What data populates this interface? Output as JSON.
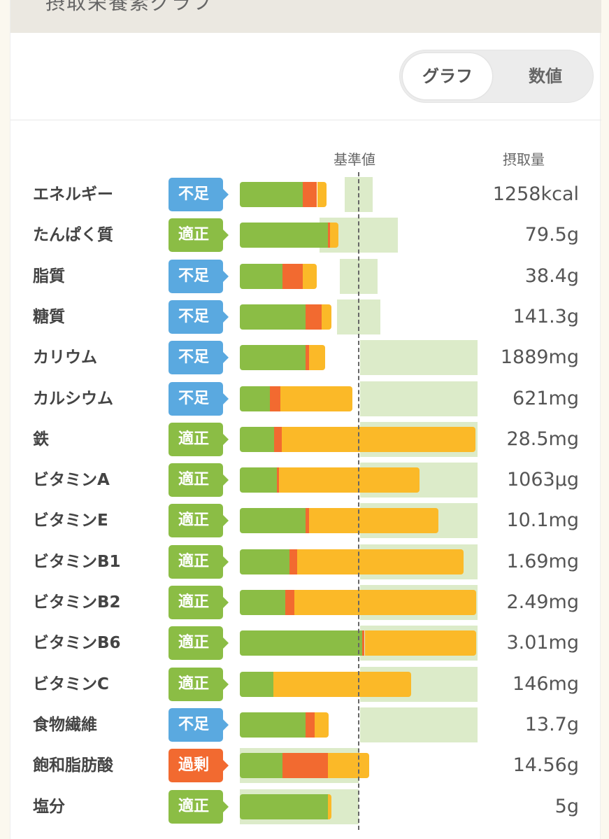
{
  "header": {
    "title": "摂取栄養素グラフ"
  },
  "toggle": {
    "graph": "グラフ",
    "number": "数値",
    "selected": "グラフ"
  },
  "columns": {
    "reference": "基準値",
    "intake": "摂取量"
  },
  "colors": {
    "green": "#8bbd45",
    "orange": "#f26a30",
    "yellow": "#fbb928",
    "band": "#dcebc9",
    "low": "#5aa9e0",
    "ok": "#8bbd45",
    "over": "#f26a30"
  },
  "chart_data": {
    "type": "bar",
    "scale_unit": "percent of reference",
    "xlim": [
      0,
      200
    ],
    "reference": 100,
    "rows": [
      {
        "name": "エネルギー",
        "status": "不足",
        "s": "low",
        "value": "1258kcal",
        "segments": [
          53,
          12,
          8
        ],
        "range": [
          88,
          112
        ]
      },
      {
        "name": "たんぱく質",
        "status": "適正",
        "s": "ok",
        "value": "79.5g",
        "segments": [
          74,
          2,
          7
        ],
        "range": [
          67,
          133
        ]
      },
      {
        "name": "脂質",
        "status": "不足",
        "s": "low",
        "value": "38.4g",
        "segments": [
          36,
          17,
          12
        ],
        "range": [
          84,
          116
        ]
      },
      {
        "name": "糖質",
        "status": "不足",
        "s": "low",
        "value": "141.3g",
        "segments": [
          55,
          14,
          8
        ],
        "range": [
          82,
          118
        ]
      },
      {
        "name": "カリウム",
        "status": "不足",
        "s": "low",
        "value": "1889mg",
        "segments": [
          55,
          3.5,
          13
        ],
        "range": [
          101,
          200
        ]
      },
      {
        "name": "カルシウム",
        "status": "不足",
        "s": "low",
        "value": "621mg",
        "segments": [
          25,
          9,
          61
        ],
        "range": [
          101,
          200
        ]
      },
      {
        "name": "鉄",
        "status": "適正",
        "s": "ok",
        "value": "28.5mg",
        "segments": [
          29,
          6.5,
          163
        ],
        "range": [
          101,
          200
        ]
      },
      {
        "name": "ビタミンA",
        "status": "適正",
        "s": "ok",
        "value": "1063μg",
        "segments": [
          31,
          2,
          118
        ],
        "range": [
          101,
          200
        ]
      },
      {
        "name": "ビタミンE",
        "status": "適正",
        "s": "ok",
        "value": "10.1mg",
        "segments": [
          55,
          3,
          109
        ],
        "range": [
          101,
          200
        ]
      },
      {
        "name": "ビタミンB1",
        "status": "適正",
        "s": "ok",
        "value": "1.69mg",
        "segments": [
          42,
          6,
          140
        ],
        "range": [
          101,
          200
        ]
      },
      {
        "name": "ビタミンB2",
        "status": "適正",
        "s": "ok",
        "value": "2.49mg",
        "segments": [
          38,
          8,
          153
        ],
        "range": [
          101,
          200
        ]
      },
      {
        "name": "ビタミンB6",
        "status": "適正",
        "s": "ok",
        "value": "3.01mg",
        "segments": [
          103,
          2,
          94
        ],
        "range": [
          101,
          200
        ]
      },
      {
        "name": "ビタミンC",
        "status": "適正",
        "s": "ok",
        "value": "146mg",
        "segments": [
          28,
          0,
          116
        ],
        "range": [
          101,
          200
        ]
      },
      {
        "name": "食物繊維",
        "status": "不足",
        "s": "low",
        "value": "13.7g",
        "segments": [
          55,
          8,
          12
        ],
        "range": [
          101,
          200
        ]
      },
      {
        "name": "飽和脂肪酸",
        "status": "過剰",
        "s": "over",
        "value": "14.56g",
        "segments": [
          36,
          38,
          35
        ],
        "range": [
          0,
          100
        ]
      },
      {
        "name": "塩分",
        "status": "適正",
        "s": "ok",
        "value": "5g",
        "segments": [
          74,
          0,
          3
        ],
        "range": [
          0,
          100
        ]
      }
    ]
  }
}
